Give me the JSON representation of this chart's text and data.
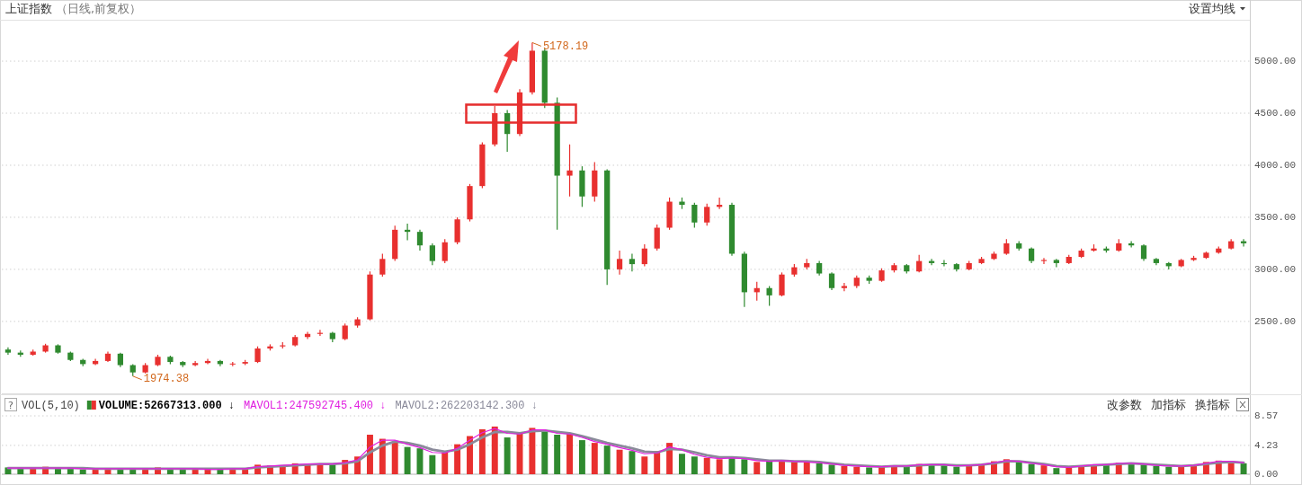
{
  "chart_data": [
    {
      "type": "candlestick",
      "title": "上证指数",
      "subtitle": "（日线,前复权）",
      "categories": [
        null,
        null,
        null,
        null,
        null,
        null,
        null,
        null,
        null,
        null,
        null,
        null,
        null,
        null,
        null,
        null,
        null,
        null,
        null,
        null,
        null,
        null,
        null,
        null,
        null,
        null,
        null,
        null,
        null,
        null,
        null,
        null,
        null,
        null,
        null,
        null,
        null,
        null,
        null,
        null,
        null,
        null,
        null,
        null,
        null,
        null,
        null,
        null,
        null,
        null,
        null,
        null,
        null,
        null,
        null,
        null,
        null,
        null,
        null,
        null,
        null,
        null,
        null,
        null,
        null,
        null,
        null,
        null,
        null,
        null,
        null,
        null,
        null,
        null,
        null,
        null,
        null,
        null,
        null,
        null,
        null,
        null,
        null,
        null,
        null,
        null,
        null,
        null,
        null,
        null,
        null,
        null,
        null,
        null,
        null,
        null,
        null,
        null,
        null,
        null
      ],
      "ohlc": [
        [
          2230,
          2250,
          2180,
          2200
        ],
        [
          2200,
          2220,
          2160,
          2180
        ],
        [
          2180,
          2230,
          2170,
          2210
        ],
        [
          2210,
          2285,
          2200,
          2270
        ],
        [
          2270,
          2280,
          2190,
          2200
        ],
        [
          2200,
          2210,
          2120,
          2130
        ],
        [
          2130,
          2140,
          2070,
          2090
        ],
        [
          2090,
          2140,
          2080,
          2120
        ],
        [
          2120,
          2210,
          2110,
          2190
        ],
        [
          2190,
          2200,
          2060,
          2080
        ],
        [
          2080,
          2090,
          1974.38,
          2010
        ],
        [
          2010,
          2100,
          2000,
          2080
        ],
        [
          2080,
          2180,
          2070,
          2160
        ],
        [
          2160,
          2170,
          2090,
          2110
        ],
        [
          2110,
          2120,
          2060,
          2080
        ],
        [
          2080,
          2120,
          2070,
          2100
        ],
        [
          2100,
          2140,
          2090,
          2120
        ],
        [
          2120,
          2130,
          2070,
          2090
        ],
        [
          2090,
          2110,
          2070,
          2095
        ],
        [
          2095,
          2130,
          2080,
          2110
        ],
        [
          2110,
          2260,
          2100,
          2240
        ],
        [
          2240,
          2280,
          2220,
          2260
        ],
        [
          2260,
          2300,
          2240,
          2270
        ],
        [
          2270,
          2370,
          2260,
          2350
        ],
        [
          2350,
          2400,
          2330,
          2380
        ],
        [
          2380,
          2420,
          2360,
          2390
        ],
        [
          2390,
          2400,
          2300,
          2330
        ],
        [
          2330,
          2480,
          2320,
          2460
        ],
        [
          2460,
          2540,
          2440,
          2520
        ],
        [
          2520,
          2980,
          2510,
          2950
        ],
        [
          2950,
          3150,
          2930,
          3100
        ],
        [
          3100,
          3420,
          3080,
          3380
        ],
        [
          3380,
          3440,
          3280,
          3360
        ],
        [
          3360,
          3380,
          3180,
          3230
        ],
        [
          3230,
          3250,
          3040,
          3080
        ],
        [
          3080,
          3290,
          3060,
          3260
        ],
        [
          3260,
          3500,
          3240,
          3480
        ],
        [
          3480,
          3820,
          3460,
          3800
        ],
        [
          3800,
          4220,
          3780,
          4200
        ],
        [
          4200,
          4570,
          4180,
          4500
        ],
        [
          4500,
          4530,
          4130,
          4300
        ],
        [
          4300,
          4730,
          4280,
          4700
        ],
        [
          4700,
          5178.19,
          4680,
          5100
        ],
        [
          5100,
          5120,
          4550,
          4600
        ],
        [
          4600,
          4650,
          3380,
          3900
        ],
        [
          3900,
          4200,
          3700,
          3950
        ],
        [
          3950,
          3990,
          3600,
          3700
        ],
        [
          3700,
          4030,
          3650,
          3950
        ],
        [
          3950,
          3960,
          2850,
          3000
        ],
        [
          3000,
          3180,
          2950,
          3100
        ],
        [
          3100,
          3150,
          2980,
          3050
        ],
        [
          3050,
          3240,
          3030,
          3200
        ],
        [
          3200,
          3430,
          3180,
          3400
        ],
        [
          3400,
          3690,
          3380,
          3650
        ],
        [
          3650,
          3690,
          3580,
          3620
        ],
        [
          3620,
          3640,
          3400,
          3450
        ],
        [
          3450,
          3630,
          3420,
          3600
        ],
        [
          3600,
          3690,
          3580,
          3620
        ],
        [
          3620,
          3640,
          3130,
          3150
        ],
        [
          3150,
          3170,
          2638,
          2780
        ],
        [
          2780,
          2880,
          2700,
          2820
        ],
        [
          2820,
          2840,
          2650,
          2750
        ],
        [
          2750,
          2970,
          2740,
          2950
        ],
        [
          2950,
          3050,
          2930,
          3020
        ],
        [
          3020,
          3100,
          3000,
          3060
        ],
        [
          3060,
          3080,
          2940,
          2960
        ],
        [
          2960,
          2970,
          2800,
          2820
        ],
        [
          2820,
          2870,
          2790,
          2840
        ],
        [
          2840,
          2940,
          2820,
          2920
        ],
        [
          2920,
          2940,
          2860,
          2890
        ],
        [
          2890,
          3010,
          2880,
          2990
        ],
        [
          2990,
          3060,
          2970,
          3040
        ],
        [
          3040,
          3050,
          2960,
          2980
        ],
        [
          2980,
          3140,
          2970,
          3080
        ],
        [
          3080,
          3100,
          3040,
          3060
        ],
        [
          3060,
          3090,
          3030,
          3050
        ],
        [
          3050,
          3060,
          2980,
          3000
        ],
        [
          3000,
          3080,
          2990,
          3060
        ],
        [
          3060,
          3120,
          3050,
          3100
        ],
        [
          3100,
          3170,
          3090,
          3150
        ],
        [
          3150,
          3290,
          3140,
          3250
        ],
        [
          3250,
          3270,
          3180,
          3200
        ],
        [
          3200,
          3210,
          3060,
          3080
        ],
        [
          3080,
          3110,
          3050,
          3090
        ],
        [
          3090,
          3100,
          3020,
          3060
        ],
        [
          3060,
          3140,
          3050,
          3120
        ],
        [
          3120,
          3200,
          3110,
          3180
        ],
        [
          3180,
          3240,
          3170,
          3200
        ],
        [
          3200,
          3220,
          3160,
          3180
        ],
        [
          3180,
          3290,
          3170,
          3250
        ],
        [
          3250,
          3270,
          3210,
          3230
        ],
        [
          3230,
          3240,
          3080,
          3100
        ],
        [
          3100,
          3110,
          3040,
          3060
        ],
        [
          3060,
          3070,
          3000,
          3030
        ],
        [
          3030,
          3100,
          3020,
          3090
        ],
        [
          3090,
          3130,
          3080,
          3110
        ],
        [
          3110,
          3170,
          3100,
          3160
        ],
        [
          3160,
          3220,
          3150,
          3200
        ],
        [
          3200,
          3290,
          3190,
          3270
        ],
        [
          3270,
          3290,
          3220,
          3250
        ]
      ],
      "colors": [
        "#2f8a2f",
        "#2f8a2f",
        "#e8302f",
        "#e8302f",
        "#2f8a2f",
        "#2f8a2f",
        "#2f8a2f",
        "#e8302f",
        "#e8302f",
        "#2f8a2f",
        "#2f8a2f",
        "#e8302f",
        "#e8302f",
        "#2f8a2f",
        "#2f8a2f",
        "#e8302f",
        "#e8302f",
        "#2f8a2f",
        "#e8302f",
        "#e8302f",
        "#e8302f",
        "#e8302f",
        "#e8302f",
        "#e8302f",
        "#e8302f",
        "#e8302f",
        "#2f8a2f",
        "#e8302f",
        "#e8302f",
        "#e8302f",
        "#e8302f",
        "#e8302f",
        "#2f8a2f",
        "#2f8a2f",
        "#2f8a2f",
        "#e8302f",
        "#e8302f",
        "#e8302f",
        "#e8302f",
        "#e8302f",
        "#2f8a2f",
        "#e8302f",
        "#e8302f",
        "#2f8a2f",
        "#2f8a2f",
        "#e8302f",
        "#2f8a2f",
        "#e8302f",
        "#2f8a2f",
        "#e8302f",
        "#2f8a2f",
        "#e8302f",
        "#e8302f",
        "#e8302f",
        "#2f8a2f",
        "#2f8a2f",
        "#e8302f",
        "#e8302f",
        "#2f8a2f",
        "#2f8a2f",
        "#e8302f",
        "#2f8a2f",
        "#e8302f",
        "#e8302f",
        "#e8302f",
        "#2f8a2f",
        "#2f8a2f",
        "#e8302f",
        "#e8302f",
        "#2f8a2f",
        "#e8302f",
        "#e8302f",
        "#2f8a2f",
        "#e8302f",
        "#2f8a2f",
        "#2f8a2f",
        "#2f8a2f",
        "#e8302f",
        "#e8302f",
        "#e8302f",
        "#e8302f",
        "#2f8a2f",
        "#2f8a2f",
        "#e8302f",
        "#2f8a2f",
        "#e8302f",
        "#e8302f",
        "#e8302f",
        "#2f8a2f",
        "#e8302f",
        "#2f8a2f",
        "#2f8a2f",
        "#2f8a2f",
        "#2f8a2f",
        "#e8302f",
        "#e8302f",
        "#e8302f",
        "#e8302f",
        "#e8302f",
        "#2f8a2f"
      ],
      "ylim": [
        1800,
        5380
      ],
      "yticks": [
        {
          "value": 2500,
          "label": "2500.00"
        },
        {
          "value": 3000,
          "label": "3000.00"
        },
        {
          "value": 3500,
          "label": "3500.00"
        },
        {
          "value": 4000,
          "label": "4000.00"
        },
        {
          "value": 4500,
          "label": "4500.00"
        },
        {
          "value": 5000,
          "label": "5000.00"
        }
      ],
      "grid": "y",
      "tick_labels": "y",
      "annotations": [
        "5178.19",
        "1974.38",
        "设置均线"
      ]
    },
    {
      "type": "bar",
      "title": "VOL(5,10)",
      "categories": [
        null,
        null,
        null,
        null,
        null,
        null,
        null,
        null,
        null,
        null,
        null,
        null,
        null,
        null,
        null,
        null,
        null,
        null,
        null,
        null,
        null,
        null,
        null,
        null,
        null,
        null,
        null,
        null,
        null,
        null,
        null,
        null,
        null,
        null,
        null,
        null,
        null,
        null,
        null,
        null,
        null,
        null,
        null,
        null,
        null,
        null,
        null,
        null,
        null,
        null,
        null,
        null,
        null,
        null,
        null,
        null,
        null,
        null,
        null,
        null,
        null,
        null,
        null,
        null,
        null,
        null,
        null,
        null,
        null,
        null,
        null,
        null,
        null,
        null,
        null,
        null,
        null,
        null,
        null,
        null,
        null,
        null,
        null,
        null,
        null,
        null,
        null,
        null,
        null,
        null,
        null,
        null,
        null,
        null,
        null,
        null,
        null,
        null,
        null,
        null
      ],
      "series": [
        {
          "name": "VOLUME:52667313.000 ↓",
          "values": [
            1.0,
            0.9,
            0.8,
            1.1,
            0.9,
            0.8,
            0.7,
            0.7,
            0.9,
            0.8,
            0.7,
            0.8,
            1.0,
            0.8,
            0.7,
            0.7,
            0.8,
            0.7,
            0.8,
            0.9,
            1.4,
            1.3,
            1.2,
            1.6,
            1.5,
            1.5,
            1.4,
            2.1,
            2.6,
            5.8,
            5.2,
            4.8,
            4.0,
            3.8,
            2.8,
            3.2,
            4.4,
            5.6,
            6.6,
            7.0,
            5.4,
            6.2,
            6.8,
            6.4,
            5.8,
            6.0,
            5.0,
            4.6,
            4.2,
            3.6,
            3.4,
            2.6,
            3.4,
            4.6,
            3.0,
            2.6,
            2.4,
            2.2,
            2.6,
            2.2,
            1.8,
            1.9,
            2.0,
            1.9,
            1.8,
            1.6,
            1.4,
            1.2,
            1.1,
            1.0,
            1.1,
            1.2,
            1.2,
            1.5,
            1.4,
            1.3,
            1.1,
            1.3,
            1.5,
            1.9,
            2.2,
            1.8,
            1.5,
            1.3,
            0.9,
            1.0,
            1.3,
            1.4,
            1.4,
            1.7,
            1.6,
            1.4,
            1.2,
            1.1,
            1.2,
            1.3,
            1.8,
            2.0,
            1.9,
            1.6
          ],
          "colors": [
            "#2f8a2f",
            "#2f8a2f",
            "#e8302f",
            "#e8302f",
            "#2f8a2f",
            "#2f8a2f",
            "#2f8a2f",
            "#e8302f",
            "#e8302f",
            "#2f8a2f",
            "#2f8a2f",
            "#e8302f",
            "#e8302f",
            "#2f8a2f",
            "#2f8a2f",
            "#e8302f",
            "#e8302f",
            "#2f8a2f",
            "#e8302f",
            "#e8302f",
            "#e8302f",
            "#e8302f",
            "#e8302f",
            "#e8302f",
            "#e8302f",
            "#e8302f",
            "#2f8a2f",
            "#e8302f",
            "#e8302f",
            "#e8302f",
            "#e8302f",
            "#e8302f",
            "#2f8a2f",
            "#2f8a2f",
            "#2f8a2f",
            "#e8302f",
            "#e8302f",
            "#e8302f",
            "#e8302f",
            "#e8302f",
            "#2f8a2f",
            "#e8302f",
            "#e8302f",
            "#2f8a2f",
            "#2f8a2f",
            "#e8302f",
            "#2f8a2f",
            "#e8302f",
            "#2f8a2f",
            "#e8302f",
            "#2f8a2f",
            "#e8302f",
            "#e8302f",
            "#e8302f",
            "#2f8a2f",
            "#2f8a2f",
            "#e8302f",
            "#e8302f",
            "#2f8a2f",
            "#2f8a2f",
            "#e8302f",
            "#2f8a2f",
            "#e8302f",
            "#e8302f",
            "#e8302f",
            "#2f8a2f",
            "#2f8a2f",
            "#e8302f",
            "#e8302f",
            "#2f8a2f",
            "#e8302f",
            "#e8302f",
            "#2f8a2f",
            "#e8302f",
            "#2f8a2f",
            "#2f8a2f",
            "#2f8a2f",
            "#e8302f",
            "#e8302f",
            "#e8302f",
            "#e8302f",
            "#2f8a2f",
            "#2f8a2f",
            "#e8302f",
            "#2f8a2f",
            "#e8302f",
            "#e8302f",
            "#e8302f",
            "#2f8a2f",
            "#e8302f",
            "#2f8a2f",
            "#2f8a2f",
            "#2f8a2f",
            "#2f8a2f",
            "#e8302f",
            "#e8302f",
            "#e8302f",
            "#e8302f",
            "#e8302f",
            "#2f8a2f"
          ]
        },
        {
          "name": "MAVOL1:247592745.400 ↓",
          "type": "line",
          "color": "#e020e0",
          "values": [
            0.9,
            0.9,
            0.9,
            0.9,
            0.9,
            0.9,
            0.8,
            0.8,
            0.8,
            0.8,
            0.8,
            0.8,
            0.8,
            0.8,
            0.8,
            0.8,
            0.7,
            0.7,
            0.8,
            0.8,
            1.1,
            1.2,
            1.3,
            1.4,
            1.5,
            1.5,
            1.5,
            1.7,
            2.1,
            4.0,
            5.0,
            5.0,
            4.4,
            3.9,
            3.2,
            3.1,
            3.8,
            5.0,
            6.1,
            6.7,
            6.0,
            5.9,
            6.5,
            6.5,
            6.0,
            5.9,
            5.4,
            4.8,
            4.4,
            3.9,
            3.5,
            3.0,
            3.1,
            4.0,
            3.6,
            2.9,
            2.5,
            2.3,
            2.4,
            2.3,
            2.0,
            1.9,
            2.0,
            1.9,
            1.8,
            1.7,
            1.5,
            1.3,
            1.2,
            1.1,
            1.1,
            1.2,
            1.2,
            1.4,
            1.4,
            1.4,
            1.2,
            1.3,
            1.4,
            1.7,
            2.0,
            1.9,
            1.6,
            1.4,
            1.1,
            1.0,
            1.2,
            1.4,
            1.4,
            1.6,
            1.6,
            1.5,
            1.3,
            1.2,
            1.2,
            1.3,
            1.6,
            1.9,
            1.9,
            1.7
          ]
        },
        {
          "name": "MAVOL2:262203142.300 ↓",
          "type": "line",
          "color": "#8a8a9a",
          "values": [
            0.9,
            0.9,
            0.9,
            0.9,
            0.9,
            0.9,
            0.9,
            0.8,
            0.8,
            0.8,
            0.8,
            0.8,
            0.8,
            0.8,
            0.8,
            0.8,
            0.8,
            0.8,
            0.8,
            0.8,
            1.0,
            1.1,
            1.2,
            1.3,
            1.4,
            1.5,
            1.5,
            1.6,
            1.9,
            3.2,
            4.2,
            4.8,
            4.6,
            4.2,
            3.6,
            3.3,
            3.6,
            4.4,
            5.4,
            6.2,
            6.2,
            6.0,
            6.3,
            6.4,
            6.2,
            6.0,
            5.6,
            5.1,
            4.6,
            4.2,
            3.8,
            3.3,
            3.2,
            3.7,
            3.6,
            3.2,
            2.8,
            2.5,
            2.5,
            2.4,
            2.2,
            2.0,
            2.0,
            1.9,
            1.9,
            1.8,
            1.6,
            1.4,
            1.3,
            1.2,
            1.1,
            1.2,
            1.2,
            1.3,
            1.4,
            1.4,
            1.3,
            1.3,
            1.4,
            1.6,
            1.9,
            1.9,
            1.7,
            1.5,
            1.2,
            1.1,
            1.2,
            1.3,
            1.4,
            1.5,
            1.6,
            1.5,
            1.4,
            1.3,
            1.2,
            1.3,
            1.5,
            1.7,
            1.8,
            1.7
          ]
        }
      ],
      "ylim": [
        0,
        8.57
      ],
      "yticks": [
        {
          "value": 0,
          "label": "0.00"
        },
        {
          "value": 4.23,
          "label": "4.23"
        },
        8.57
      ],
      "grid": "y",
      "tick_labels": "y",
      "legend": "top left",
      "annotations": [
        "?",
        "改参数",
        "加指标",
        "换指标"
      ]
    }
  ]
}
